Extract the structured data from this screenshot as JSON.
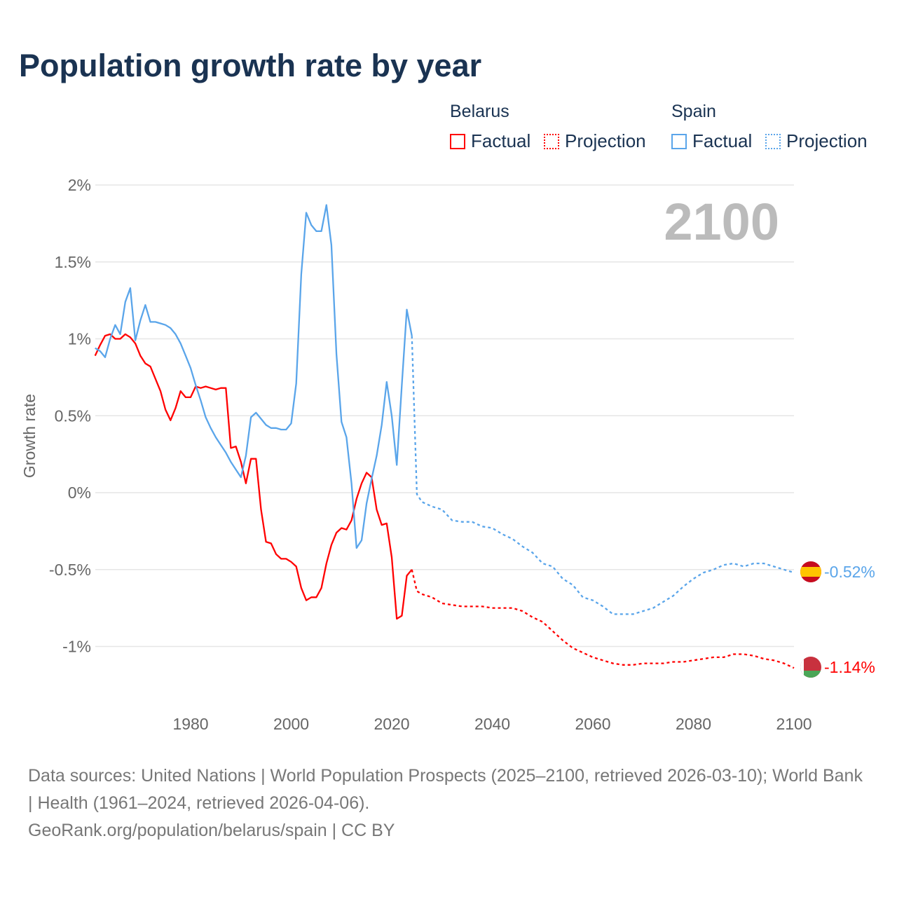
{
  "title": "Population growth rate by year",
  "legend": {
    "groups": [
      {
        "name": "Belarus",
        "color": "#ff0000",
        "items": [
          "Factual",
          "Projection"
        ]
      },
      {
        "name": "Spain",
        "color": "#5aa5ea",
        "items": [
          "Factual",
          "Projection"
        ]
      }
    ]
  },
  "year_label": "2100",
  "end_labels": {
    "spain": "-0.52%",
    "belarus": "-1.14%"
  },
  "footer": {
    "sources": "Data sources: United Nations | World Population Prospects (2025–2100, retrieved 2026-03-10); World Bank | Health (1961–2024, retrieved 2026-04-06).",
    "credit": "GeoRank.org/population/belarus/spain | CC BY"
  },
  "chart_data": {
    "type": "line",
    "title": "Population growth rate by year",
    "xlabel": "",
    "ylabel": "Growth rate",
    "xlim": [
      1961,
      2100
    ],
    "ylim": [
      -1.3,
      2.0
    ],
    "x_ticks": [
      1980,
      2000,
      2020,
      2040,
      2060,
      2080,
      2100
    ],
    "y_ticks": [
      {
        "v": 2,
        "label": "2%"
      },
      {
        "v": 1.5,
        "label": "1.5%"
      },
      {
        "v": 1,
        "label": "1%"
      },
      {
        "v": 0.5,
        "label": "0.5%"
      },
      {
        "v": 0,
        "label": "0%"
      },
      {
        "v": -0.5,
        "label": "-0.5%"
      },
      {
        "v": -1,
        "label": "-1%"
      }
    ],
    "grid": true,
    "legend_position": "top-right",
    "series": [
      {
        "name": "Belarus Factual",
        "color": "#ff0000",
        "style": "solid",
        "start_year": 1961,
        "values": [
          0.89,
          0.96,
          1.02,
          1.03,
          1.0,
          1.0,
          1.03,
          1.01,
          0.97,
          0.89,
          0.84,
          0.82,
          0.74,
          0.66,
          0.54,
          0.47,
          0.55,
          0.66,
          0.62,
          0.62,
          0.69,
          0.68,
          0.69,
          0.68,
          0.67,
          0.68,
          0.68,
          0.29,
          0.3,
          0.2,
          0.06,
          0.22,
          0.22,
          -0.11,
          -0.32,
          -0.33,
          -0.4,
          -0.43,
          -0.43,
          -0.45,
          -0.48,
          -0.62,
          -0.7,
          -0.68,
          -0.68,
          -0.62,
          -0.46,
          -0.34,
          -0.26,
          -0.23,
          -0.24,
          -0.18,
          -0.04,
          0.06,
          0.13,
          0.1,
          -0.11,
          -0.21,
          -0.2,
          -0.42,
          -0.82,
          -0.8,
          -0.54,
          -0.5
        ]
      },
      {
        "name": "Belarus Projection",
        "color": "#ff0000",
        "style": "dotted",
        "years": [
          2025,
          2026,
          2028,
          2030,
          2032,
          2034,
          2036,
          2038,
          2040,
          2042,
          2044,
          2046,
          2048,
          2050,
          2052,
          2054,
          2056,
          2058,
          2060,
          2062,
          2064,
          2066,
          2068,
          2070,
          2072,
          2074,
          2076,
          2078,
          2080,
          2082,
          2084,
          2086,
          2088,
          2090,
          2092,
          2094,
          2096,
          2098,
          2100
        ],
        "values": [
          -0.64,
          -0.66,
          -0.68,
          -0.72,
          -0.73,
          -0.74,
          -0.74,
          -0.74,
          -0.75,
          -0.75,
          -0.75,
          -0.77,
          -0.81,
          -0.84,
          -0.9,
          -0.96,
          -1.01,
          -1.04,
          -1.07,
          -1.09,
          -1.11,
          -1.12,
          -1.12,
          -1.11,
          -1.11,
          -1.11,
          -1.1,
          -1.1,
          -1.09,
          -1.08,
          -1.07,
          -1.07,
          -1.05,
          -1.05,
          -1.06,
          -1.08,
          -1.09,
          -1.11,
          -1.14
        ]
      },
      {
        "name": "Spain Factual",
        "color": "#5aa5ea",
        "style": "solid",
        "start_year": 1961,
        "values": [
          0.94,
          0.92,
          0.88,
          1.0,
          1.09,
          1.03,
          1.24,
          1.33,
          0.99,
          1.12,
          1.22,
          1.11,
          1.11,
          1.1,
          1.09,
          1.07,
          1.03,
          0.97,
          0.89,
          0.81,
          0.7,
          0.6,
          0.49,
          0.42,
          0.36,
          0.31,
          0.26,
          0.2,
          0.15,
          0.1,
          0.24,
          0.49,
          0.52,
          0.48,
          0.44,
          0.42,
          0.42,
          0.41,
          0.41,
          0.45,
          0.71,
          1.42,
          1.82,
          1.74,
          1.7,
          1.7,
          1.87,
          1.61,
          0.9,
          0.46,
          0.36,
          0.06,
          -0.36,
          -0.31,
          -0.07,
          0.09,
          0.24,
          0.44,
          0.72,
          0.5,
          0.18,
          0.7,
          1.19,
          1.02
        ]
      },
      {
        "name": "Spain Projection",
        "color": "#5aa5ea",
        "style": "dotted",
        "years": [
          2025,
          2026,
          2028,
          2030,
          2032,
          2034,
          2036,
          2038,
          2040,
          2042,
          2044,
          2046,
          2048,
          2050,
          2052,
          2054,
          2056,
          2058,
          2060,
          2062,
          2064,
          2066,
          2068,
          2070,
          2072,
          2074,
          2076,
          2078,
          2080,
          2082,
          2084,
          2086,
          2088,
          2090,
          2092,
          2094,
          2096,
          2098,
          2100
        ],
        "values": [
          -0.01,
          -0.06,
          -0.09,
          -0.11,
          -0.18,
          -0.19,
          -0.19,
          -0.22,
          -0.23,
          -0.27,
          -0.3,
          -0.35,
          -0.39,
          -0.46,
          -0.48,
          -0.56,
          -0.6,
          -0.68,
          -0.7,
          -0.74,
          -0.79,
          -0.79,
          -0.79,
          -0.77,
          -0.75,
          -0.71,
          -0.67,
          -0.61,
          -0.56,
          -0.52,
          -0.5,
          -0.47,
          -0.46,
          -0.48,
          -0.46,
          -0.46,
          -0.48,
          -0.5,
          -0.52
        ]
      }
    ]
  }
}
